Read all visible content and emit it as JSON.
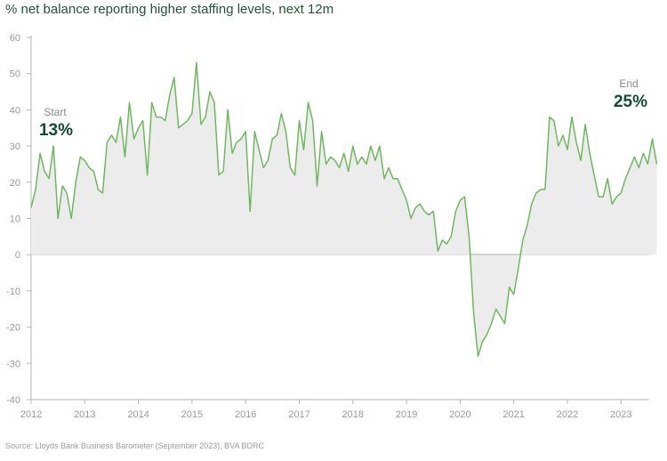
{
  "chart_data": {
    "type": "area",
    "title": "% net balance reporting higher staffing levels, next 12m",
    "source": "Source: Lloyds Bank Business Barometer (September 2023), BVA BDRC",
    "ylim": [
      -40,
      60
    ],
    "yticks": [
      "60",
      "50",
      "40",
      "30",
      "20",
      "10",
      "0",
      "-10",
      "-20",
      "-30",
      "-40"
    ],
    "xticks": [
      "2012",
      "2013",
      "2014",
      "2015",
      "2016",
      "2017",
      "2018",
      "2019",
      "2020",
      "2021",
      "2022",
      "2023"
    ],
    "grid": false,
    "line_color": "#6fb85f",
    "fill_color": "#ececec",
    "annotations": {
      "start_label": "Start",
      "start_value": "13%",
      "end_label": "End",
      "end_value": "25%"
    },
    "series": [
      {
        "frequency": "monthly",
        "start": "2012-01",
        "values": [
          13,
          18,
          28,
          23,
          21,
          30,
          10,
          19,
          17,
          10,
          20,
          27,
          26,
          24,
          23,
          18,
          17,
          31,
          33,
          31,
          38,
          27,
          42,
          32,
          35,
          37,
          22,
          42,
          38,
          38,
          37,
          44,
          49,
          35,
          36,
          37,
          39,
          53,
          36,
          38,
          45,
          42,
          22,
          23,
          40,
          28,
          31,
          32,
          34,
          12,
          34,
          29,
          24,
          26,
          32,
          33,
          39,
          34,
          24,
          22,
          37,
          29,
          42,
          37,
          19,
          34,
          25,
          27,
          26,
          24,
          28,
          23,
          30,
          25,
          27,
          25,
          30,
          26,
          30,
          21,
          24,
          21,
          21,
          18,
          15,
          10,
          13,
          14,
          12,
          11,
          12,
          1,
          4,
          3,
          5,
          12,
          15,
          16,
          5,
          -16,
          -28,
          -24,
          -22,
          -19,
          -15,
          -17,
          -19,
          -9,
          -11,
          -4,
          4,
          8,
          14,
          17,
          18,
          18,
          38,
          37,
          30,
          33,
          29,
          38,
          31,
          26,
          36,
          28,
          22,
          16,
          16,
          21,
          14,
          16,
          17,
          21,
          24,
          27,
          24,
          28,
          25,
          32,
          25
        ]
      }
    ]
  }
}
